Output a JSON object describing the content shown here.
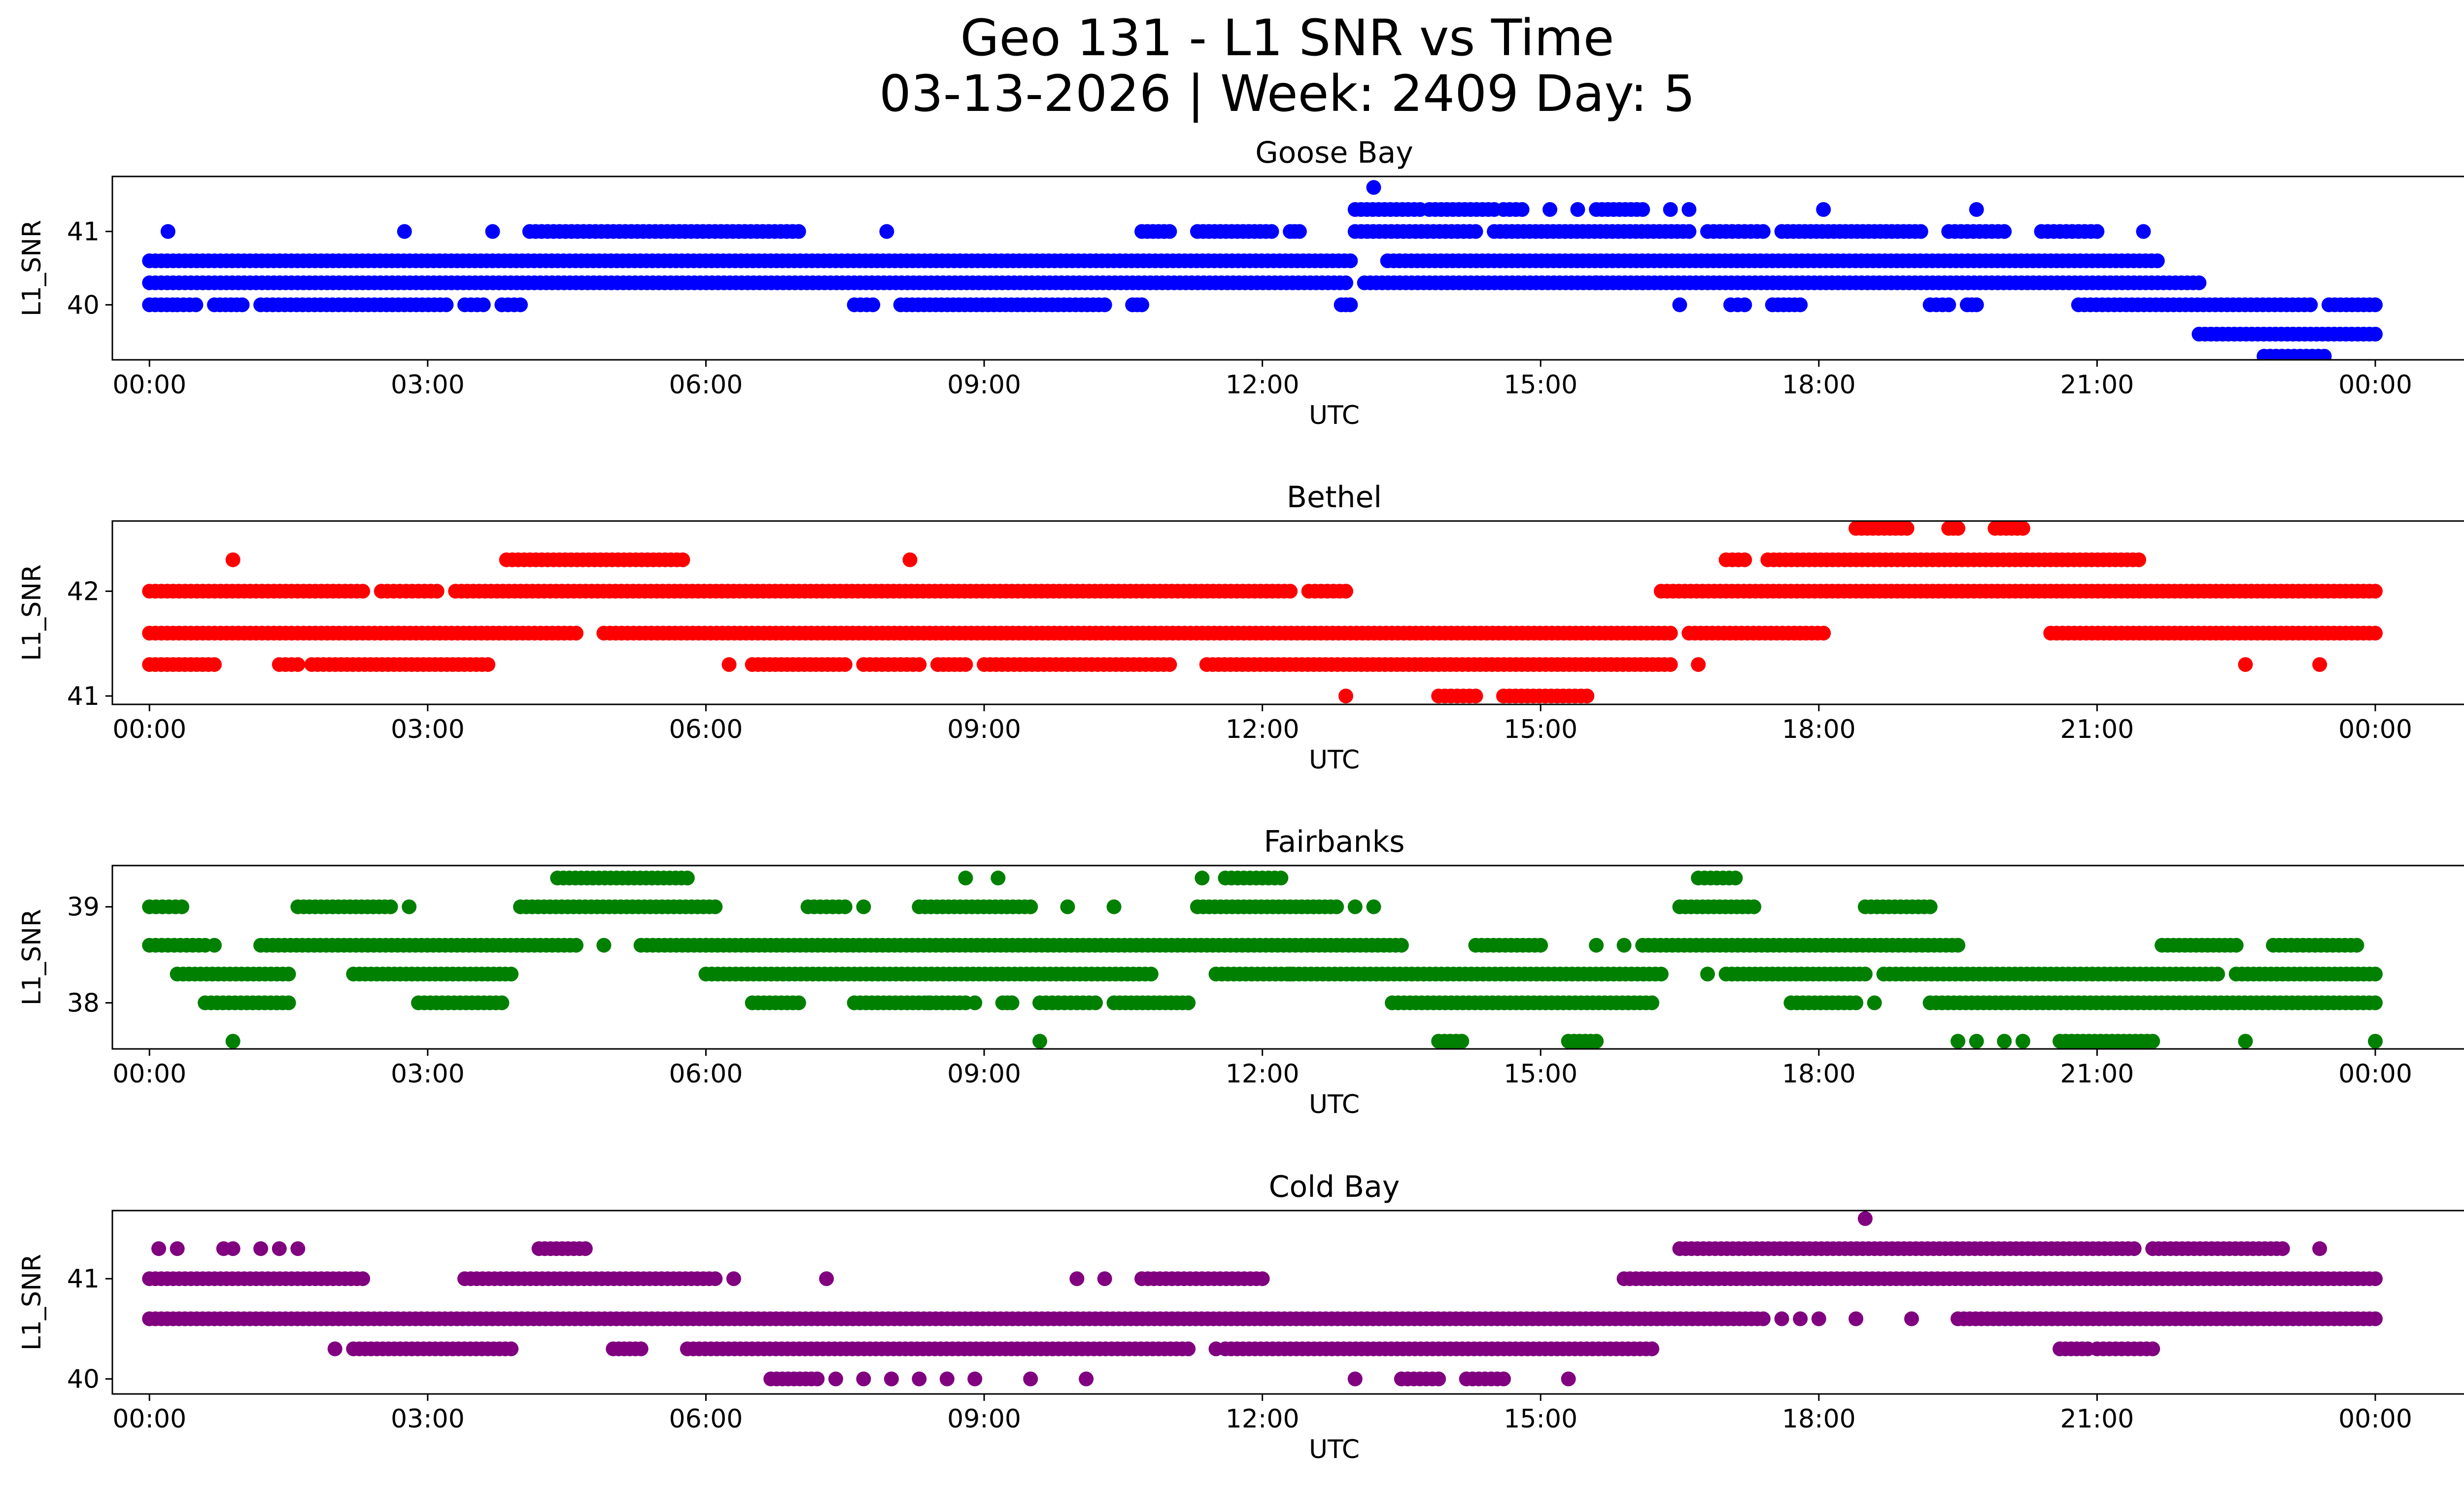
{
  "figure": {
    "title_line1": "Geo 131 - L1 SNR vs Time",
    "title_line2": "03-13-2026 | Week: 2409 Day: 5"
  },
  "chart_data": [
    {
      "type": "scatter",
      "title": "Goose Bay",
      "color": "#0000ff",
      "xlabel": "UTC",
      "ylabel": "L1_SNR",
      "xlim": [
        -0.4,
        25.95
      ],
      "ylim": [
        39.25,
        41.75
      ],
      "xticks": [
        0,
        3,
        6,
        9,
        12,
        15,
        18,
        21,
        24
      ],
      "xticklabels": [
        "00:00",
        "03:00",
        "06:00",
        "09:00",
        "12:00",
        "15:00",
        "18:00",
        "21:00",
        "00:00"
      ],
      "yticks": [
        40,
        41
      ],
      "segments": [
        {
          "y": 40.6,
          "ranges": [
            [
              0,
              12.95
            ],
            [
              13.35,
              21.65
            ]
          ]
        },
        {
          "y": 40.3,
          "ranges": [
            [
              0,
              12.9
            ],
            [
              13.1,
              22.1
            ]
          ]
        },
        {
          "y": 40.0,
          "ranges": [
            [
              0,
              0.25
            ],
            [
              0.3,
              0.5
            ],
            [
              0.7,
              1.0
            ],
            [
              1.2,
              3.2
            ],
            [
              3.4,
              3.6
            ],
            [
              3.8,
              4.0
            ],
            [
              7.6,
              7.8
            ],
            [
              8.1,
              10.3
            ],
            [
              10.6,
              10.7
            ],
            [
              12.85,
              12.95
            ],
            [
              17.05,
              17.2
            ],
            [
              17.5,
              17.8
            ],
            [
              19.2,
              19.4
            ],
            [
              19.6,
              19.7
            ],
            [
              20.8,
              23.3
            ],
            [
              23.5,
              24
            ]
          ]
        },
        {
          "y": 41.0,
          "ranges": [
            [
              4.1,
              7.0
            ],
            [
              10.7,
              11.0
            ],
            [
              11.3,
              12.1
            ],
            [
              12.3,
              12.4
            ],
            [
              13.0,
              14.3
            ],
            [
              14.5,
              16.6
            ],
            [
              16.8,
              17.4
            ],
            [
              17.6,
              19.1
            ],
            [
              19.4,
              20.0
            ],
            [
              20.4,
              21.0
            ]
          ]
        },
        {
          "y": 41.3,
          "ranges": [
            [
              13.0,
              13.7
            ],
            [
              13.8,
              14.5
            ],
            [
              14.6,
              14.8
            ],
            [
              15.6,
              16.1
            ]
          ]
        },
        {
          "y": 39.6,
          "ranges": [
            [
              22.1,
              24
            ]
          ]
        },
        {
          "y": 39.3,
          "ranges": [
            [
              22.8,
              23.45
            ]
          ]
        }
      ],
      "points": [
        [
          0.2,
          41.0
        ],
        [
          2.75,
          41.0
        ],
        [
          3.7,
          41.0
        ],
        [
          7.95,
          41.0
        ],
        [
          13.2,
          41.6
        ],
        [
          15.1,
          41.3
        ],
        [
          15.4,
          41.3
        ],
        [
          16.4,
          41.3
        ],
        [
          16.6,
          41.3
        ],
        [
          18.05,
          41.3
        ],
        [
          19.7,
          41.3
        ],
        [
          21.5,
          41.0
        ],
        [
          15.6,
          40.3
        ],
        [
          16.1,
          40.3
        ],
        [
          16.5,
          40.0
        ]
      ]
    },
    {
      "type": "scatter",
      "title": "Bethel",
      "color": "#ff0000",
      "xlabel": "UTC",
      "ylabel": "L1_SNR",
      "xlim": [
        -0.4,
        25.95
      ],
      "ylim": [
        40.92,
        42.67
      ],
      "xticks": [
        0,
        3,
        6,
        9,
        12,
        15,
        18,
        21,
        24
      ],
      "xticklabels": [
        "00:00",
        "03:00",
        "06:00",
        "09:00",
        "12:00",
        "15:00",
        "18:00",
        "21:00",
        "00:00"
      ],
      "yticks": [
        41,
        42
      ],
      "segments": [
        {
          "y": 42.0,
          "ranges": [
            [
              0,
              2.3
            ],
            [
              2.5,
              3.1
            ],
            [
              3.3,
              12.3
            ],
            [
              12.5,
              12.9
            ],
            [
              16.3,
              24
            ]
          ]
        },
        {
          "y": 41.6,
          "ranges": [
            [
              0,
              4.6
            ],
            [
              4.9,
              16.4
            ],
            [
              16.6,
              18.05
            ],
            [
              20.5,
              24
            ]
          ]
        },
        {
          "y": 41.3,
          "ranges": [
            [
              0,
              0.7
            ],
            [
              1.4,
              1.6
            ],
            [
              1.75,
              3.65
            ],
            [
              6.5,
              7.5
            ],
            [
              7.7,
              8.3
            ],
            [
              8.5,
              8.8
            ],
            [
              9.0,
              11.0
            ],
            [
              11.4,
              16.4
            ]
          ]
        },
        {
          "y": 42.3,
          "ranges": [
            [
              3.85,
              5.75
            ],
            [
              17.0,
              17.2
            ],
            [
              17.45,
              21.45
            ]
          ]
        },
        {
          "y": 42.6,
          "ranges": [
            [
              18.4,
              18.95
            ],
            [
              19.4,
              19.5
            ],
            [
              19.9,
              20.2
            ]
          ]
        },
        {
          "y": 41.0,
          "ranges": [
            [
              13.9,
              14.3
            ],
            [
              14.6,
              15.5
            ]
          ]
        }
      ],
      "points": [
        [
          0.9,
          42.3
        ],
        [
          8.2,
          42.3
        ],
        [
          12.9,
          41.0
        ],
        [
          6.25,
          41.3
        ],
        [
          16.7,
          41.3
        ],
        [
          22.6,
          41.3
        ],
        [
          23.4,
          41.3
        ]
      ]
    },
    {
      "type": "scatter",
      "title": "Fairbanks",
      "color": "#008000",
      "xlabel": "UTC",
      "ylabel": "L1_SNR",
      "xlim": [
        -0.4,
        25.95
      ],
      "ylim": [
        37.52,
        39.43
      ],
      "xticks": [
        0,
        3,
        6,
        9,
        12,
        15,
        18,
        21,
        24
      ],
      "xticklabels": [
        "00:00",
        "03:00",
        "06:00",
        "09:00",
        "12:00",
        "15:00",
        "18:00",
        "21:00",
        "00:00"
      ],
      "yticks": [
        38,
        39
      ],
      "segments": [
        {
          "y": 39.0,
          "ranges": [
            [
              0,
              0.35
            ],
            [
              1.6,
              2.6
            ],
            [
              4.0,
              6.1
            ],
            [
              7.1,
              7.5
            ],
            [
              8.3,
              9.5
            ],
            [
              11.3,
              12.8
            ],
            [
              16.5,
              17.3
            ],
            [
              18.5,
              19.2
            ]
          ]
        },
        {
          "y": 38.6,
          "ranges": [
            [
              0,
              0.6
            ],
            [
              1.2,
              4.6
            ],
            [
              5.3,
              13.5
            ],
            [
              14.3,
              15.0
            ],
            [
              16.1,
              19.5
            ],
            [
              21.7,
              22.5
            ],
            [
              22.9,
              23.8
            ]
          ]
        },
        {
          "y": 38.3,
          "ranges": [
            [
              0.3,
              1.5
            ],
            [
              2.2,
              3.9
            ],
            [
              6.0,
              10.8
            ],
            [
              11.5,
              16.3
            ],
            [
              17.0,
              18.5
            ],
            [
              18.7,
              22.3
            ],
            [
              22.5,
              24
            ]
          ]
        },
        {
          "y": 38.0,
          "ranges": [
            [
              0.6,
              1.5
            ],
            [
              2.9,
              3.8
            ],
            [
              6.5,
              7.0
            ],
            [
              7.6,
              8.8
            ],
            [
              9.2,
              9.3
            ],
            [
              9.6,
              10.2
            ],
            [
              10.4,
              11.2
            ],
            [
              13.4,
              16.2
            ],
            [
              17.7,
              18.4
            ],
            [
              19.2,
              24
            ]
          ]
        },
        {
          "y": 39.3,
          "ranges": [
            [
              4.4,
              5.8
            ],
            [
              11.6,
              12.2
            ],
            [
              16.7,
              17.1
            ]
          ]
        },
        {
          "y": 37.6,
          "ranges": [
            [
              13.9,
              14.15
            ],
            [
              15.3,
              15.6
            ],
            [
              20.6,
              21.6
            ]
          ]
        }
      ],
      "points": [
        [
          0.9,
          37.6
        ],
        [
          9.6,
          37.6
        ],
        [
          19.5,
          37.6
        ],
        [
          19.7,
          37.6
        ],
        [
          20.0,
          37.6
        ],
        [
          20.2,
          37.6
        ],
        [
          22.6,
          37.6
        ],
        [
          24.0,
          37.6
        ],
        [
          8.8,
          39.3
        ],
        [
          9.15,
          39.3
        ],
        [
          11.35,
          39.3
        ],
        [
          2.8,
          39.0
        ],
        [
          7.7,
          39.0
        ],
        [
          9.9,
          39.0
        ],
        [
          10.4,
          39.0
        ],
        [
          13.0,
          39.0
        ],
        [
          13.2,
          39.0
        ],
        [
          0.7,
          38.6
        ],
        [
          4.9,
          38.6
        ],
        [
          6.0,
          38.6
        ],
        [
          15.6,
          38.6
        ],
        [
          15.9,
          38.6
        ],
        [
          12.3,
          38.3
        ],
        [
          16.8,
          38.3
        ],
        [
          8.4,
          38.0
        ],
        [
          8.9,
          38.0
        ],
        [
          18.6,
          38.0
        ]
      ]
    },
    {
      "type": "scatter",
      "title": "Cold Bay",
      "color": "#800080",
      "xlabel": "UTC",
      "ylabel": "L1_SNR",
      "xlim": [
        -0.4,
        25.95
      ],
      "ylim": [
        39.85,
        41.68
      ],
      "xticks": [
        0,
        3,
        6,
        9,
        12,
        15,
        18,
        21,
        24
      ],
      "xticklabels": [
        "00:00",
        "03:00",
        "06:00",
        "09:00",
        "12:00",
        "15:00",
        "18:00",
        "21:00",
        "00:00"
      ],
      "yticks": [
        40,
        41
      ],
      "segments": [
        {
          "y": 41.0,
          "ranges": [
            [
              0,
              2.3
            ],
            [
              3.4,
              6.1
            ],
            [
              10.7,
              12.0
            ],
            [
              15.9,
              24
            ]
          ]
        },
        {
          "y": 40.6,
          "ranges": [
            [
              0,
              17.4
            ],
            [
              19.5,
              24
            ]
          ]
        },
        {
          "y": 40.3,
          "ranges": [
            [
              2.2,
              3.9
            ],
            [
              5.0,
              5.3
            ],
            [
              5.8,
              11.2
            ],
            [
              11.6,
              16.2
            ],
            [
              20.6,
              20.9
            ],
            [
              21.0,
              21.6
            ]
          ]
        },
        {
          "y": 41.3,
          "ranges": [
            [
              4.2,
              4.7
            ],
            [
              16.5,
              21.4
            ],
            [
              21.6,
              23.0
            ]
          ]
        },
        {
          "y": 40.0,
          "ranges": [
            [
              6.7,
              7.2
            ],
            [
              13.5,
              13.9
            ],
            [
              14.2,
              14.6
            ]
          ]
        }
      ],
      "points": [
        [
          0.1,
          41.3
        ],
        [
          0.3,
          41.3
        ],
        [
          0.8,
          41.3
        ],
        [
          0.9,
          41.3
        ],
        [
          1.2,
          41.3
        ],
        [
          1.4,
          41.3
        ],
        [
          1.6,
          41.3
        ],
        [
          6.3,
          41.0
        ],
        [
          7.3,
          41.0
        ],
        [
          10.0,
          41.0
        ],
        [
          10.3,
          41.0
        ],
        [
          2.0,
          40.3
        ],
        [
          11.5,
          40.3
        ],
        [
          17.6,
          40.6
        ],
        [
          17.8,
          40.6
        ],
        [
          18.0,
          40.6
        ],
        [
          18.4,
          40.6
        ],
        [
          19.0,
          40.6
        ],
        [
          18.5,
          41.6
        ],
        [
          7.4,
          40.0
        ],
        [
          7.7,
          40.0
        ],
        [
          8.0,
          40.0
        ],
        [
          8.3,
          40.0
        ],
        [
          8.6,
          40.0
        ],
        [
          8.9,
          40.0
        ],
        [
          9.5,
          40.0
        ],
        [
          10.1,
          40.0
        ],
        [
          13.0,
          40.0
        ],
        [
          15.3,
          40.0
        ],
        [
          23.4,
          41.3
        ]
      ]
    }
  ]
}
